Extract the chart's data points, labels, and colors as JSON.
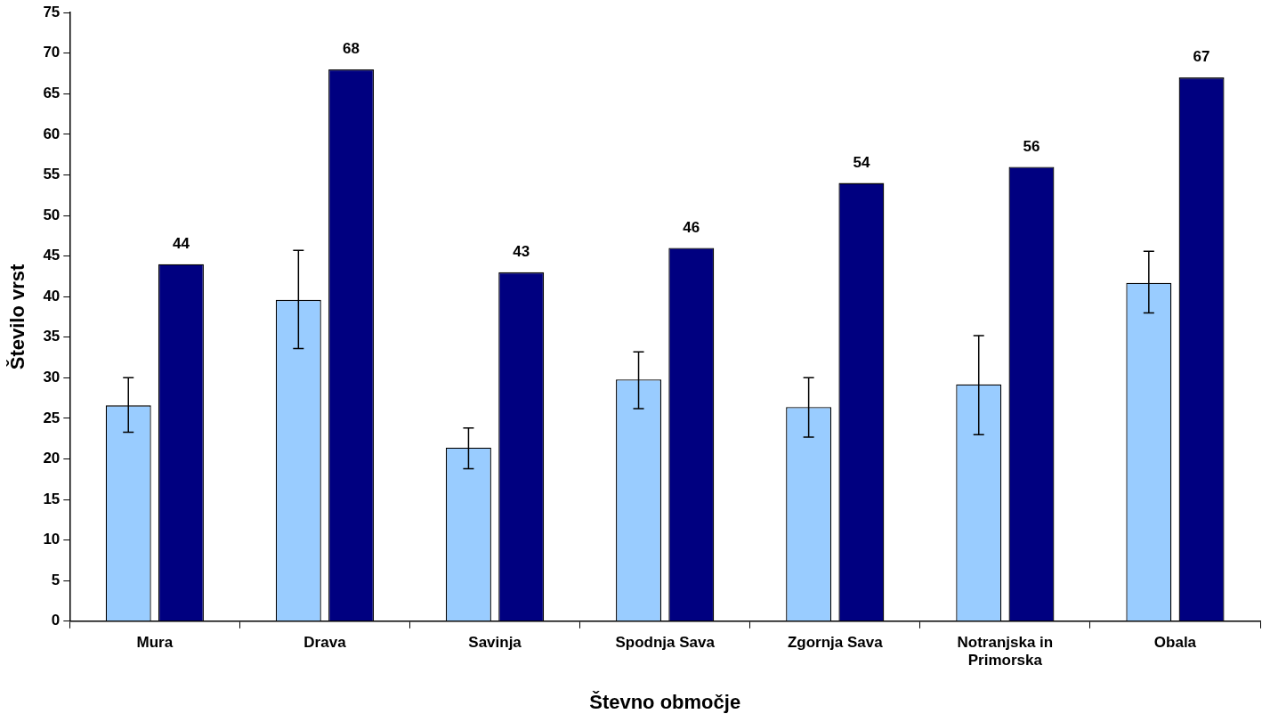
{
  "chart_data": {
    "type": "bar",
    "xlabel": "Števno območje",
    "ylabel": "Število vrst",
    "categories": [
      "Mura",
      "Drava",
      "Savinja",
      "Spodnja Sava",
      "Zgornja Sava",
      "Notranjska in Primorska",
      "Obala"
    ],
    "series": [
      {
        "color": "#99ccff",
        "values": [
          26.6,
          39.6,
          21.4,
          29.8,
          26.4,
          29.2,
          41.7
        ],
        "errors": [
          [
            23.3,
            30.0
          ],
          [
            33.6,
            45.7
          ],
          [
            18.8,
            23.8
          ],
          [
            26.2,
            33.2
          ],
          [
            22.7,
            30.0
          ],
          [
            23.0,
            35.2
          ],
          [
            38.0,
            45.6
          ]
        ]
      },
      {
        "color": "#000080",
        "values": [
          44,
          68,
          43,
          46,
          54,
          56,
          67
        ],
        "value_labels": [
          "44",
          "68",
          "43",
          "46",
          "54",
          "56",
          "67"
        ]
      }
    ],
    "ylim": [
      0,
      75
    ],
    "yticks": [
      0,
      5,
      10,
      15,
      20,
      25,
      30,
      35,
      40,
      45,
      50,
      55,
      60,
      65,
      70,
      75
    ],
    "grid": false,
    "legend": false
  }
}
